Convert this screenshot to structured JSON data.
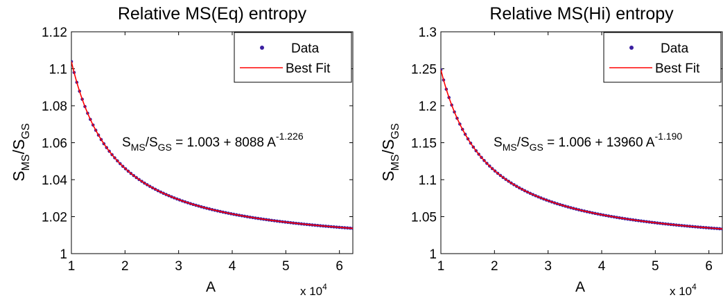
{
  "chart_data": [
    {
      "type": "scatter",
      "title": "Relative MS(Eq) entropy",
      "xlabel": "A",
      "x_multiplier": "x 10",
      "x_multiplier_exponent": "4",
      "ylabel_main": "S",
      "ylabel_sub1": "MS",
      "ylabel_sep": "/S",
      "ylabel_sub2": "GS",
      "xlim": [
        1,
        6.25
      ],
      "ylim": [
        1,
        1.12
      ],
      "xticks": [
        1,
        2,
        3,
        4,
        5,
        6
      ],
      "xtick_labels": [
        "1",
        "2",
        "3",
        "4",
        "5",
        "6"
      ],
      "yticks": [
        1,
        1.02,
        1.04,
        1.06,
        1.08,
        1.1,
        1.12
      ],
      "ytick_labels": [
        "1",
        "1.02",
        "1.04",
        "1.06",
        "1.08",
        "1.1",
        "1.12"
      ],
      "grid": false,
      "legend_position": "top-right",
      "legend": [
        {
          "label": "Data",
          "marker": "point",
          "color": "#3a1fa0"
        },
        {
          "label": "Best Fit",
          "marker": "line",
          "color": "#ff0000"
        }
      ],
      "annotation": {
        "s": "S",
        "sub1": "MS",
        "sep": "/S",
        "sub2": "GS",
        "body": " = 1.003 + 8088 A",
        "exponent": "-1.226"
      },
      "fit": {
        "c": 1.003,
        "a": 8088,
        "b": -1.226
      },
      "x_data_scale": 10000,
      "data_x_range": [
        1.0,
        6.25
      ],
      "data_points_count": 105,
      "series": [
        {
          "name": "Data",
          "style": "markers",
          "color": "#3a1fa0"
        },
        {
          "name": "Best Fit",
          "style": "line",
          "color": "#ff0000"
        }
      ]
    },
    {
      "type": "scatter",
      "title": "Relative MS(Hi) entropy",
      "xlabel": "A",
      "x_multiplier": "x 10",
      "x_multiplier_exponent": "4",
      "ylabel_main": "S",
      "ylabel_sub1": "MS",
      "ylabel_sep": "/S",
      "ylabel_sub2": "GS",
      "xlim": [
        1,
        6.25
      ],
      "ylim": [
        1,
        1.3
      ],
      "xticks": [
        1,
        2,
        3,
        4,
        5,
        6
      ],
      "xtick_labels": [
        "1",
        "2",
        "3",
        "4",
        "5",
        "6"
      ],
      "yticks": [
        1,
        1.05,
        1.1,
        1.15,
        1.2,
        1.25,
        1.3
      ],
      "ytick_labels": [
        "1",
        "1.05",
        "1.1",
        "1.15",
        "1.2",
        "1.25",
        "1.3"
      ],
      "grid": false,
      "legend_position": "top-right",
      "legend": [
        {
          "label": "Data",
          "marker": "point",
          "color": "#3a1fa0"
        },
        {
          "label": "Best Fit",
          "marker": "line",
          "color": "#ff0000"
        }
      ],
      "annotation": {
        "s": "S",
        "sub1": "MS",
        "sep": "/S",
        "sub2": "GS",
        "body": " = 1.006 + 13960 A",
        "exponent": "-1.190"
      },
      "fit": {
        "c": 1.006,
        "a": 13960,
        "b": -1.19
      },
      "x_data_scale": 10000,
      "data_x_range": [
        1.0,
        6.25
      ],
      "data_points_count": 105,
      "series": [
        {
          "name": "Data",
          "style": "markers",
          "color": "#3a1fa0"
        },
        {
          "name": "Best Fit",
          "style": "line",
          "color": "#ff0000"
        }
      ]
    }
  ]
}
